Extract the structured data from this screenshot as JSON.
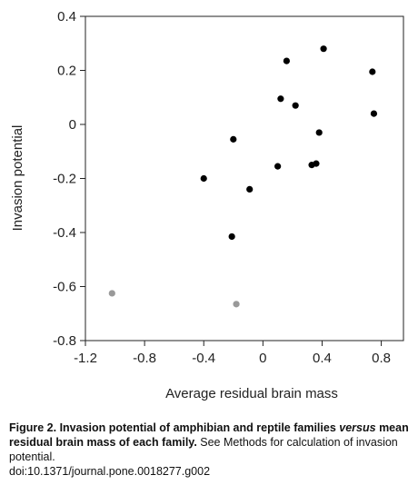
{
  "chart_data": {
    "type": "scatter",
    "title": "",
    "xlabel": "Average residual brain mass",
    "ylabel": "Invasion potential",
    "xlim": [
      -1.2,
      0.95
    ],
    "ylim": [
      -0.8,
      0.4
    ],
    "xticks": [
      -1.2,
      -0.8,
      -0.4,
      0,
      0.4,
      0.8
    ],
    "xtick_labels": [
      "-1.2",
      "-0.8",
      "-0.4",
      "0",
      "0.4",
      "0.8"
    ],
    "yticks": [
      -0.8,
      -0.6,
      -0.4,
      -0.2,
      0,
      0.2,
      0.4
    ],
    "ytick_labels": [
      "-0.8",
      "-0.6",
      "-0.4",
      "-0.2",
      "0",
      "0.2",
      "0.4"
    ],
    "grid": false,
    "series": [
      {
        "color": "#000000",
        "points": [
          {
            "x": 0.41,
            "y": 0.28
          },
          {
            "x": 0.16,
            "y": 0.235
          },
          {
            "x": 0.74,
            "y": 0.195
          },
          {
            "x": 0.12,
            "y": 0.095
          },
          {
            "x": 0.22,
            "y": 0.07
          },
          {
            "x": 0.75,
            "y": 0.04
          },
          {
            "x": 0.38,
            "y": -0.03
          },
          {
            "x": -0.2,
            "y": -0.055
          },
          {
            "x": 0.36,
            "y": -0.145
          },
          {
            "x": 0.33,
            "y": -0.15
          },
          {
            "x": 0.1,
            "y": -0.155
          },
          {
            "x": -0.4,
            "y": -0.2
          },
          {
            "x": -0.09,
            "y": -0.24
          },
          {
            "x": -0.21,
            "y": -0.415
          }
        ]
      },
      {
        "color": "#999999",
        "points": [
          {
            "x": -1.02,
            "y": -0.625
          },
          {
            "x": -0.18,
            "y": -0.665
          }
        ]
      }
    ]
  },
  "caption": {
    "figure_label": "Figure 2. Invasion potential of amphibian and reptile families",
    "versus": "versus",
    "bold_rest": " mean residual brain mass of each family.",
    "plain": " See Methods for calculation of invasion potential.",
    "doi": "doi:10.1371/journal.pone.0018277.g002"
  }
}
